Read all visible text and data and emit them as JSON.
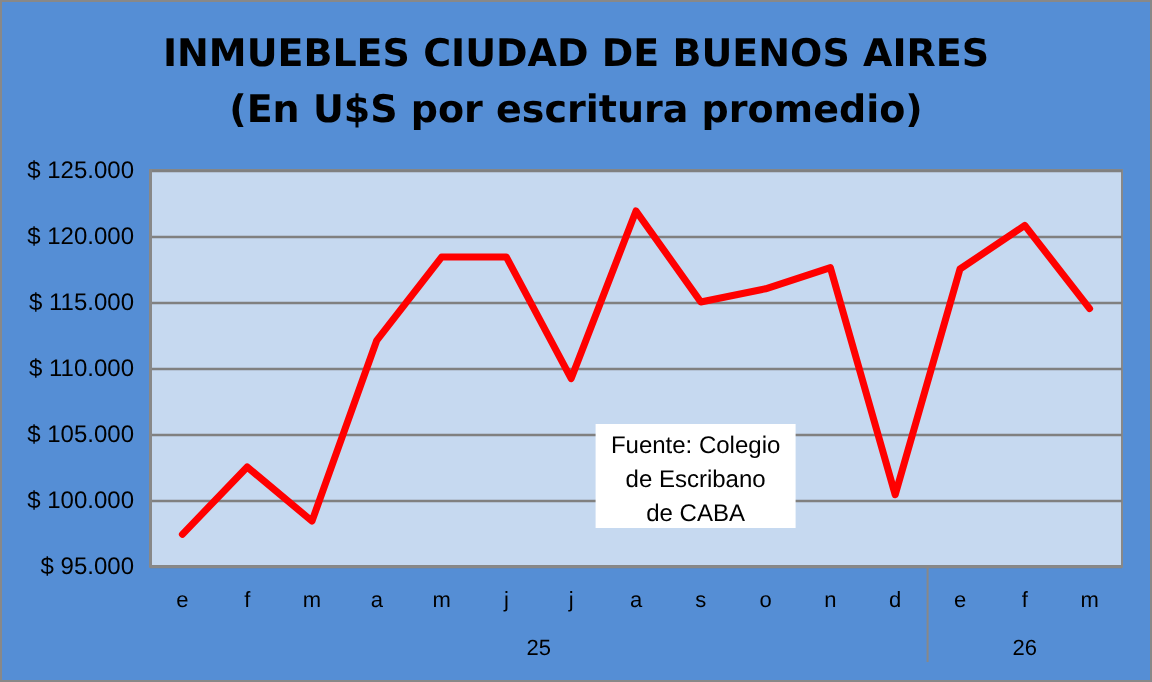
{
  "chart_data": {
    "type": "line",
    "title": "INMUEBLES CIUDAD DE BUENOS AIRES\n(En U$S por escritura promedio)",
    "categories": [
      "e",
      "f",
      "m",
      "a",
      "m",
      "j",
      "j",
      "a",
      "s",
      "o",
      "n",
      "d",
      "e",
      "f",
      "m"
    ],
    "series": [
      {
        "color": "#ff0000",
        "values": [
          97400,
          102500,
          98400,
          112100,
          118400,
          118400,
          109200,
          121900,
          115000,
          116000,
          117600,
          100400,
          117500,
          120800,
          114500
        ]
      }
    ],
    "ylim": [
      95000,
      125000
    ],
    "yticks": [
      {
        "value": 95000,
        "label": "$ 95.000"
      },
      {
        "value": 100000,
        "label": "$ 100.000"
      },
      {
        "value": 105000,
        "label": "$ 105.000"
      },
      {
        "value": 110000,
        "label": "$ 110.000"
      },
      {
        "value": 115000,
        "label": "$ 115.000"
      },
      {
        "value": 120000,
        "label": "$ 120.000"
      },
      {
        "value": 125000,
        "label": "$ 125.000"
      }
    ],
    "grid": "y",
    "marker": "none",
    "line_style": "solid",
    "annotations": [
      "Fuente: Colegio\nde Escribano\nde CABA",
      "25",
      "26"
    ]
  }
}
